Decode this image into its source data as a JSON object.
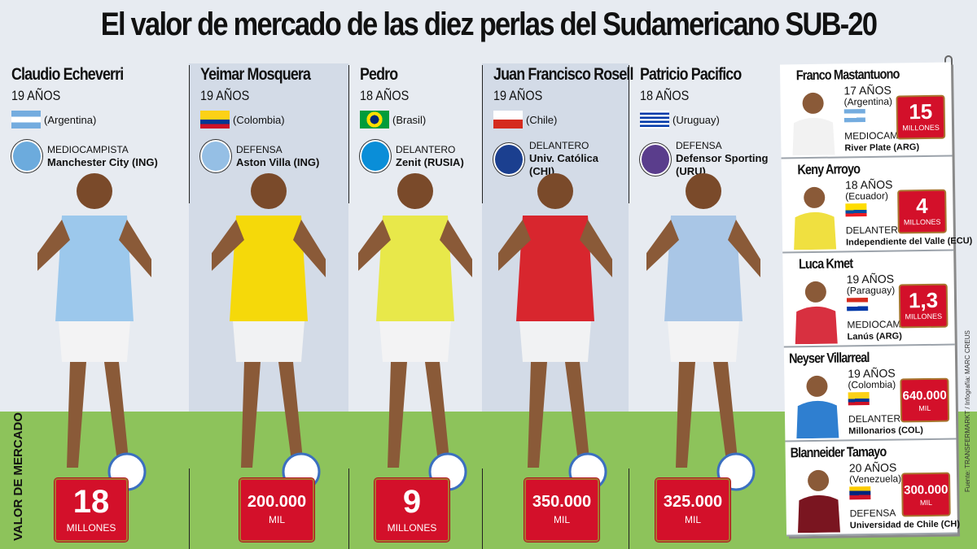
{
  "title": "El valor de mercado de las diez perlas del Sudamericano SUB-20",
  "market_value_label": "VALOR DE MERCADO",
  "source": "Fuente: TRANSFERMARKT / Infografía: MARC CREUS",
  "colors": {
    "value_box": "#d3102a",
    "field": "#8dc35b",
    "background": "#e7ebf1",
    "column_shade": "#d3dbe7"
  },
  "main_players": [
    {
      "name": "Claudio Echeverri",
      "age": "19 AÑOS",
      "country": "(Argentina)",
      "flag": "argentina",
      "position": "MEDIOCAMPISTA",
      "club": "Manchester City (ING)",
      "crest": "manchester-city-crest",
      "value": "18",
      "unit": "MILLONES",
      "jersey": "#9cc8ec"
    },
    {
      "name": "Yeimar Mosquera",
      "age": "19 AÑOS",
      "country": "(Colombia)",
      "flag": "colombia",
      "position": "DEFENSA",
      "club": "Aston Villa (ING)",
      "crest": "aston-villa-crest",
      "value": "200.000",
      "unit": "MIL",
      "jersey": "#f5d90a"
    },
    {
      "name": "Pedro",
      "age": "18 AÑOS",
      "country": "(Brasil)",
      "flag": "brazil",
      "position": "DELANTERO",
      "club": "Zenit (RUSIA)",
      "crest": "zenit-crest",
      "value": "9",
      "unit": "MILLONES",
      "jersey": "#e8e84a"
    },
    {
      "name": "Juan Francisco Rosell",
      "age": "19 AÑOS",
      "country": "(Chile)",
      "flag": "chile",
      "position": "DELANTERO",
      "club": "Univ. Católica (CHI)",
      "crest": "universidad-catolica-crest",
      "value": "350.000",
      "unit": "MIL",
      "jersey": "#d8262e"
    },
    {
      "name": "Patricio Pacifico",
      "age": "18 AÑOS",
      "country": "(Uruguay)",
      "flag": "uruguay",
      "position": "DEFENSA",
      "club": "Defensor Sporting (URU)",
      "crest": "defensor-sporting-crest",
      "value": "325.000",
      "unit": "MIL",
      "jersey": "#a9c6e6"
    }
  ],
  "side_players": [
    {
      "name": "Franco Mastantuono",
      "age": "17 AÑOS",
      "country": "(Argentina)",
      "flag": "argentina",
      "position": "MEDIOCAMPISTA",
      "club": "River Plate (ARG)",
      "value": "15",
      "unit": "MILLONES",
      "jersey": "#f2f2f2"
    },
    {
      "name": "Keny Arroyo",
      "age": "18 AÑOS",
      "country": "(Ecuador)",
      "flag": "ecuador",
      "position": "DELANTERO",
      "club": "Independiente del Valle (ECU)",
      "value": "4",
      "unit": "MILLONES",
      "jersey": "#f0e040"
    },
    {
      "name": "Luca Kmet",
      "age": "19 AÑOS",
      "country": "(Paraguay)",
      "flag": "paraguay",
      "position": "MEDIOCAMPISTA",
      "club": "Lanús (ARG)",
      "value": "1,3",
      "unit": "MILLONES",
      "jersey": "#d83040"
    },
    {
      "name": "Neyser Villarreal",
      "age": "19 AÑOS",
      "country": "(Colombia)",
      "flag": "colombia",
      "position": "DELANTERO",
      "club": "Millonarios (COL)",
      "value": "640.000",
      "unit": "MIL",
      "jersey": "#2f7fd0"
    },
    {
      "name": "Blanneider Tamayo",
      "age": "20 AÑOS",
      "country": "(Venezuela)",
      "flag": "venezuela",
      "position": "DEFENSA",
      "club": "Universidad de Chile (CH)",
      "value": "300.000",
      "unit": "MIL",
      "jersey": "#7a1520"
    }
  ]
}
